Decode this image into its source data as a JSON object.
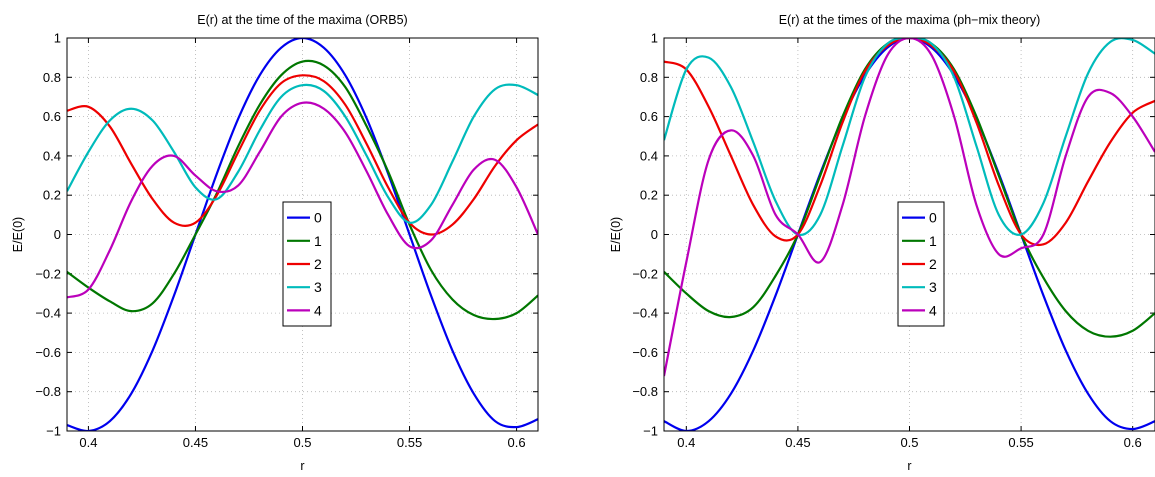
{
  "chart_data": [
    {
      "type": "line",
      "title": "E(r) at the time of the maxima (ORB5)",
      "xlabel": "r",
      "ylabel": "E/E(0)",
      "xlim": [
        0.39,
        0.61
      ],
      "ylim": [
        -1,
        1
      ],
      "xticks": [
        0.4,
        0.45,
        0.5,
        0.55,
        0.6
      ],
      "xtick_labels": [
        "0.4",
        "0.45",
        "0.5",
        "0.55",
        "0.6"
      ],
      "yticks": [
        -1,
        -0.8,
        -0.6,
        -0.4,
        -0.2,
        0,
        0.2,
        0.4,
        0.6,
        0.8,
        1
      ],
      "ytick_labels": [
        "−1",
        "−0.8",
        "−0.6",
        "−0.4",
        "−0.2",
        "0",
        "0.2",
        "0.4",
        "0.6",
        "0.8",
        "1"
      ],
      "grid": true,
      "legend_position": "center",
      "x": [
        0.39,
        0.4,
        0.41,
        0.42,
        0.43,
        0.44,
        0.45,
        0.46,
        0.47,
        0.48,
        0.49,
        0.5,
        0.51,
        0.52,
        0.53,
        0.54,
        0.55,
        0.56,
        0.57,
        0.58,
        0.59,
        0.6,
        0.61
      ],
      "series": [
        {
          "name": "0",
          "color": "#0000ee",
          "values": [
            -0.97,
            -1.0,
            -0.95,
            -0.81,
            -0.59,
            -0.31,
            0.0,
            0.31,
            0.59,
            0.81,
            0.95,
            1.0,
            0.95,
            0.81,
            0.59,
            0.31,
            0.0,
            -0.31,
            -0.59,
            -0.81,
            -0.95,
            -0.98,
            -0.94
          ]
        },
        {
          "name": "1",
          "color": "#007700",
          "values": [
            -0.19,
            -0.27,
            -0.34,
            -0.39,
            -0.35,
            -0.2,
            0.0,
            0.21,
            0.45,
            0.66,
            0.81,
            0.88,
            0.86,
            0.75,
            0.55,
            0.32,
            0.05,
            -0.18,
            -0.33,
            -0.41,
            -0.43,
            -0.4,
            -0.31
          ]
        },
        {
          "name": "2",
          "color": "#ee0000",
          "values": [
            0.63,
            0.65,
            0.55,
            0.36,
            0.18,
            0.06,
            0.06,
            0.2,
            0.42,
            0.63,
            0.77,
            0.81,
            0.78,
            0.66,
            0.46,
            0.24,
            0.06,
            0.0,
            0.05,
            0.18,
            0.35,
            0.48,
            0.56
          ]
        },
        {
          "name": "3",
          "color": "#00bbbb",
          "values": [
            0.22,
            0.42,
            0.58,
            0.64,
            0.58,
            0.42,
            0.24,
            0.18,
            0.32,
            0.53,
            0.7,
            0.76,
            0.73,
            0.6,
            0.4,
            0.19,
            0.06,
            0.15,
            0.37,
            0.6,
            0.74,
            0.76,
            0.71
          ]
        },
        {
          "name": "4",
          "color": "#bb00bb",
          "values": [
            -0.32,
            -0.28,
            -0.08,
            0.17,
            0.35,
            0.4,
            0.3,
            0.22,
            0.25,
            0.42,
            0.6,
            0.67,
            0.64,
            0.52,
            0.32,
            0.1,
            -0.06,
            -0.03,
            0.15,
            0.33,
            0.38,
            0.24,
            0.0
          ]
        }
      ]
    },
    {
      "type": "line",
      "title": "E(r) at the times of the maxima (ph−mix theory)",
      "xlabel": "r",
      "ylabel": "E/E(0)",
      "xlim": [
        0.39,
        0.61
      ],
      "ylim": [
        -1,
        1
      ],
      "xticks": [
        0.4,
        0.45,
        0.5,
        0.55,
        0.6
      ],
      "xtick_labels": [
        "0.4",
        "0.45",
        "0.5",
        "0.55",
        "0.6"
      ],
      "yticks": [
        -1,
        -0.8,
        -0.6,
        -0.4,
        -0.2,
        0,
        0.2,
        0.4,
        0.6,
        0.8,
        1
      ],
      "ytick_labels": [
        "−1",
        "−0.8",
        "−0.6",
        "−0.4",
        "−0.2",
        "0",
        "0.2",
        "0.4",
        "0.6",
        "0.8",
        "1"
      ],
      "grid": true,
      "legend_position": "center",
      "x": [
        0.39,
        0.4,
        0.41,
        0.42,
        0.43,
        0.44,
        0.45,
        0.46,
        0.47,
        0.48,
        0.49,
        0.5,
        0.51,
        0.52,
        0.53,
        0.54,
        0.55,
        0.56,
        0.57,
        0.58,
        0.59,
        0.6,
        0.61
      ],
      "series": [
        {
          "name": "0",
          "color": "#0000ee",
          "values": [
            -0.95,
            -1.0,
            -0.95,
            -0.81,
            -0.59,
            -0.31,
            0.0,
            0.31,
            0.59,
            0.81,
            0.95,
            1.0,
            0.95,
            0.81,
            0.59,
            0.31,
            0.0,
            -0.31,
            -0.59,
            -0.81,
            -0.95,
            -0.99,
            -0.95
          ]
        },
        {
          "name": "1",
          "color": "#007700",
          "values": [
            -0.19,
            -0.3,
            -0.39,
            -0.42,
            -0.37,
            -0.21,
            0.0,
            0.3,
            0.6,
            0.84,
            0.97,
            1.0,
            0.97,
            0.84,
            0.6,
            0.3,
            0.0,
            -0.22,
            -0.39,
            -0.49,
            -0.52,
            -0.49,
            -0.4
          ]
        },
        {
          "name": "2",
          "color": "#ee0000",
          "values": [
            0.88,
            0.84,
            0.65,
            0.4,
            0.15,
            -0.01,
            0.0,
            0.25,
            0.57,
            0.83,
            0.96,
            1.0,
            0.96,
            0.83,
            0.57,
            0.25,
            0.0,
            -0.05,
            0.06,
            0.27,
            0.47,
            0.62,
            0.68
          ]
        },
        {
          "name": "3",
          "color": "#00bbbb",
          "values": [
            0.48,
            0.84,
            0.9,
            0.75,
            0.47,
            0.17,
            0.0,
            0.1,
            0.45,
            0.8,
            0.97,
            1.0,
            0.97,
            0.8,
            0.45,
            0.1,
            0.0,
            0.16,
            0.5,
            0.82,
            0.98,
            0.99,
            0.92
          ]
        },
        {
          "name": "4",
          "color": "#bb00bb",
          "values": [
            -0.72,
            -0.14,
            0.38,
            0.53,
            0.4,
            0.1,
            0.0,
            -0.14,
            0.15,
            0.6,
            0.91,
            1.0,
            0.91,
            0.6,
            0.15,
            -0.1,
            -0.07,
            0.0,
            0.4,
            0.7,
            0.72,
            0.6,
            0.42
          ]
        }
      ]
    }
  ]
}
